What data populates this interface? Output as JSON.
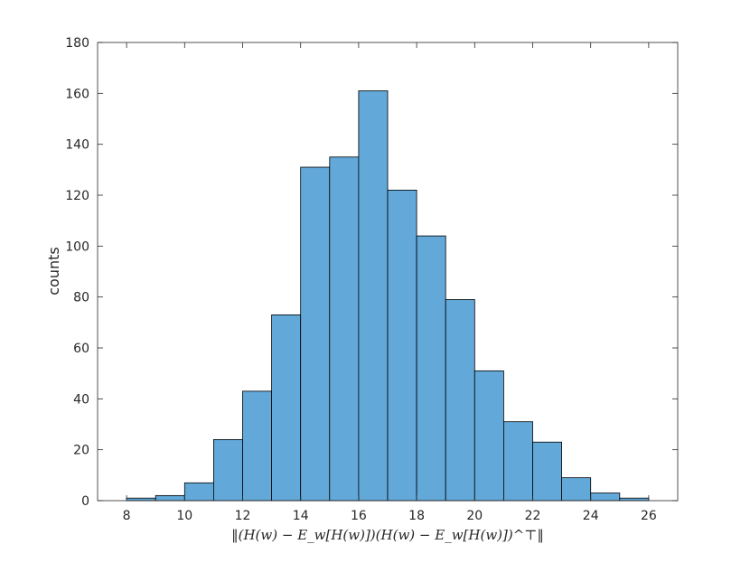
{
  "chart_data": {
    "type": "bar",
    "subtype": "histogram",
    "bin_edges": [
      8,
      9,
      10,
      11,
      12,
      13,
      14,
      15,
      16,
      17,
      18,
      19,
      20,
      21,
      22,
      23,
      24,
      25,
      26
    ],
    "values": [
      1,
      2,
      7,
      24,
      43,
      73,
      131,
      135,
      161,
      122,
      104,
      79,
      51,
      31,
      23,
      9,
      3,
      1
    ],
    "title": "",
    "xlabel": "‖(H(w) − E_w[H(w)])(H(w) − E_w[H(w)])^⊤‖",
    "ylabel": "counts",
    "xlim": [
      7,
      27
    ],
    "ylim": [
      0,
      180
    ],
    "xticks": [
      8,
      10,
      12,
      14,
      16,
      18,
      20,
      22,
      24,
      26
    ],
    "yticks": [
      0,
      20,
      40,
      60,
      80,
      100,
      120,
      140,
      160,
      180
    ],
    "grid": false,
    "legend": "none",
    "bar_color": "#62a8d8",
    "edge_color": "#000000"
  }
}
